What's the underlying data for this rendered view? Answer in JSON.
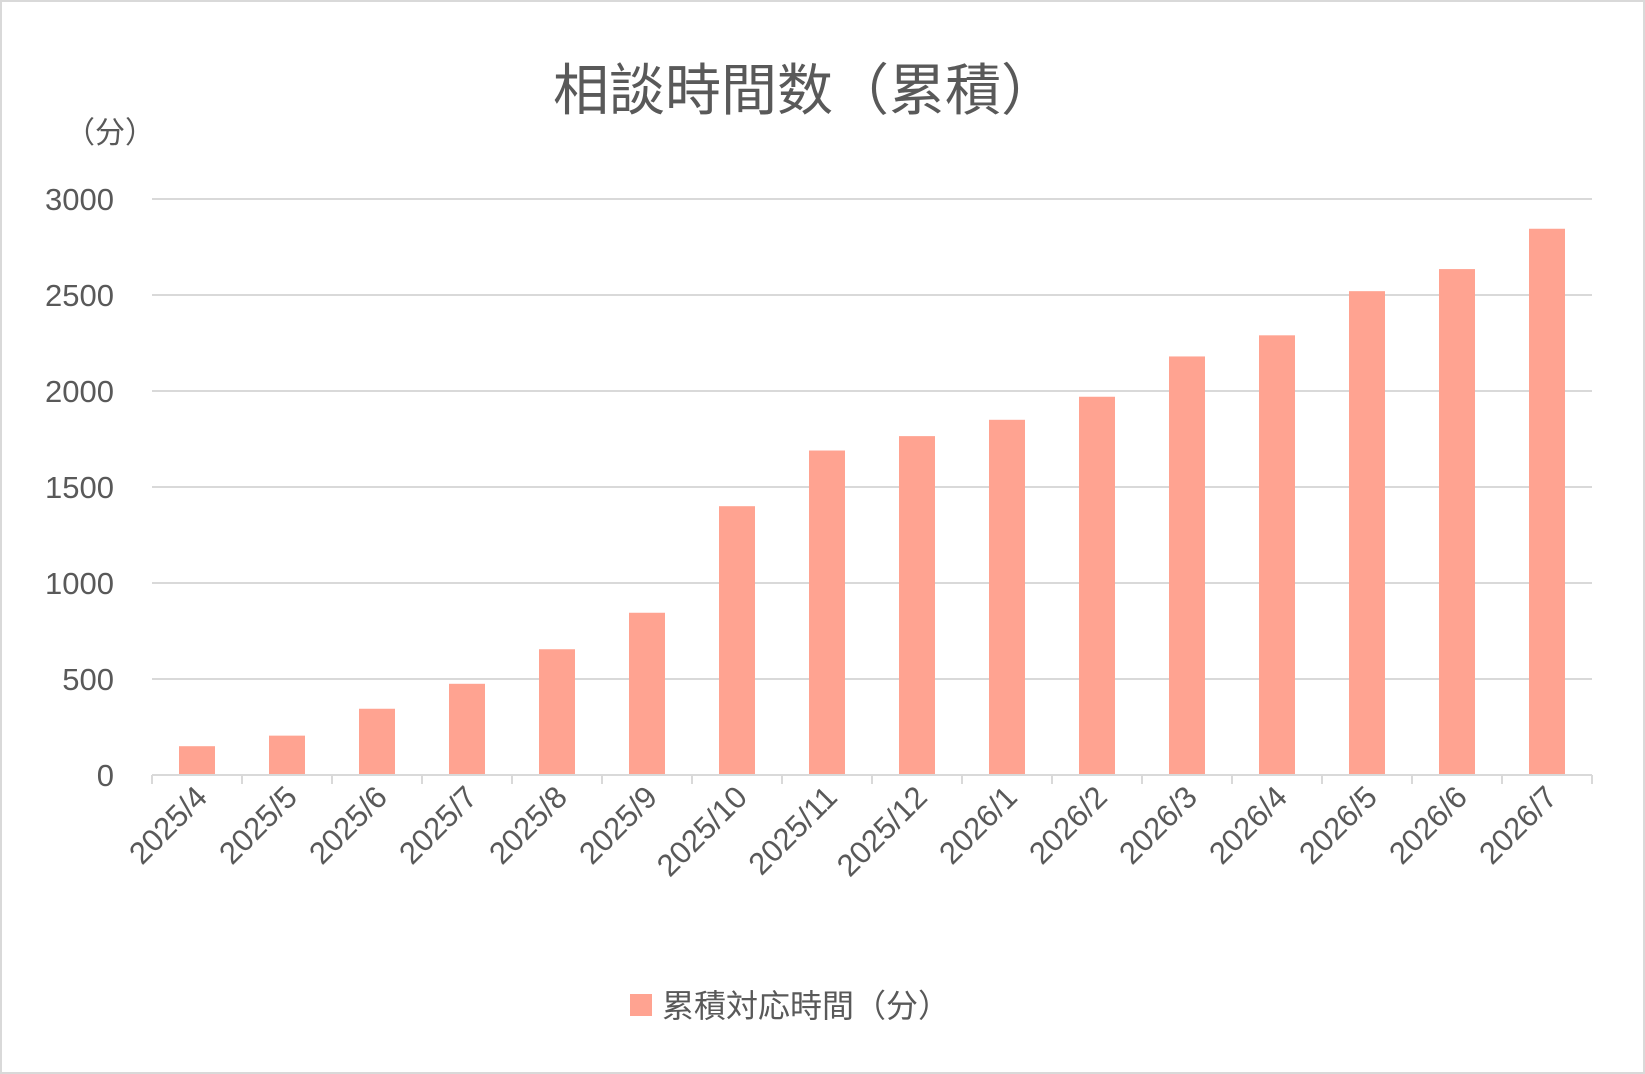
{
  "chart_data": {
    "type": "bar",
    "title": "相談時間数（累積）",
    "unit_label": "（分）",
    "xlabel": "",
    "ylabel": "",
    "categories": [
      "2025/4",
      "2025/5",
      "2025/6",
      "2025/7",
      "2025/8",
      "2025/9",
      "2025/10",
      "2025/11",
      "2025/12",
      "2026/1",
      "2026/2",
      "2026/3",
      "2026/4",
      "2026/5",
      "2026/6",
      "2026/7"
    ],
    "series": [
      {
        "name": "累積対応時間（分）",
        "color": "#ffa391",
        "values": [
          150,
          205,
          345,
          475,
          655,
          845,
          1400,
          1690,
          1765,
          1850,
          1970,
          2180,
          2290,
          2520,
          2635,
          2845
        ]
      }
    ],
    "ylim": [
      0,
      3000
    ],
    "yticks": [
      "0",
      "500",
      "1000",
      "1500",
      "2000",
      "2500",
      "3000"
    ],
    "grid": true,
    "legend": "bottom"
  }
}
